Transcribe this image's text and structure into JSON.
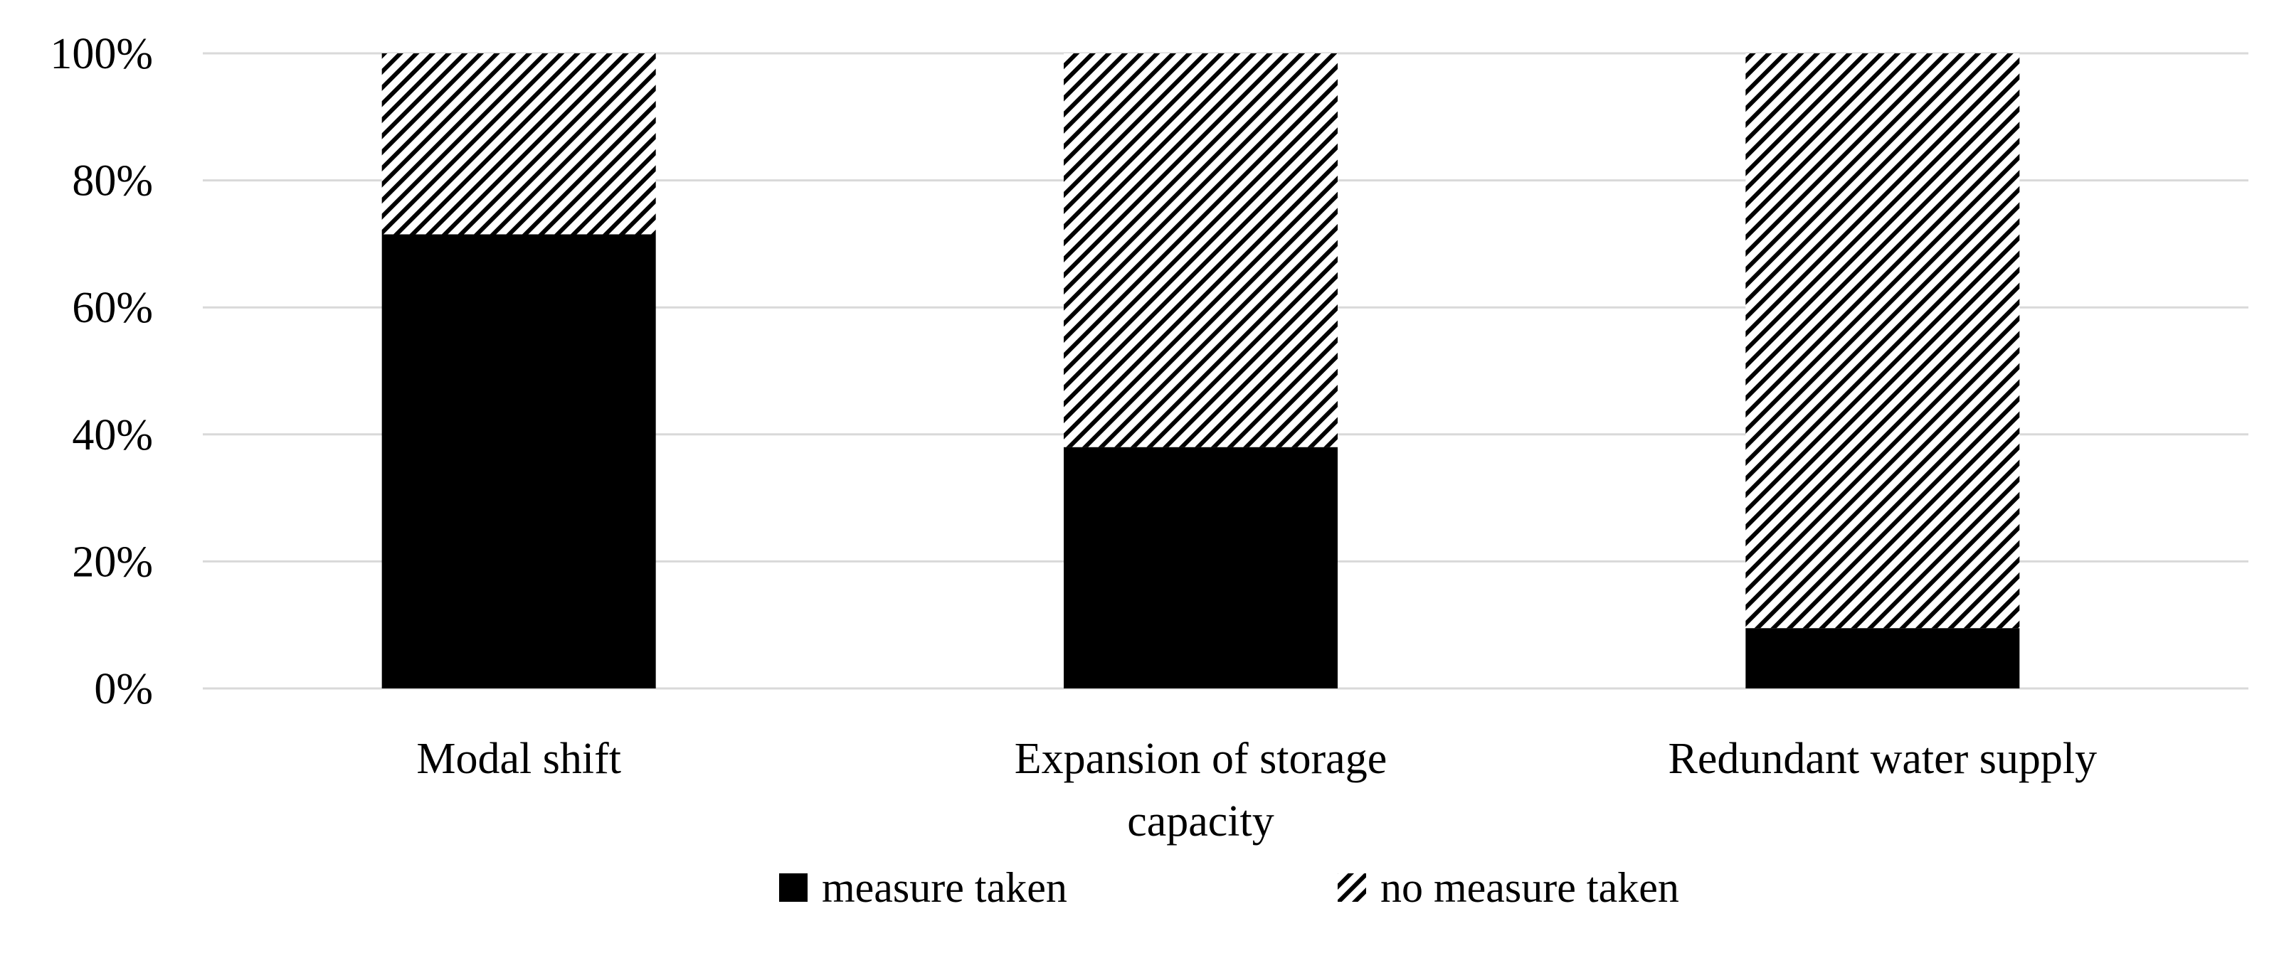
{
  "chart_data": {
    "type": "bar",
    "stacked": true,
    "normalized_percent": true,
    "title": "",
    "xlabel": "",
    "ylabel": "",
    "categories": [
      "Modal shift",
      "Expansion of storage capacity",
      "Redundant water supply"
    ],
    "category_label_lines": [
      [
        "Modal shift"
      ],
      [
        "Expansion of storage",
        "capacity"
      ],
      [
        "Redundant water supply"
      ]
    ],
    "series": [
      {
        "name": "measure taken",
        "values": [
          71.5,
          38,
          9.5
        ],
        "color": "#000000",
        "pattern": "solid"
      },
      {
        "name": "no measure taken",
        "values": [
          28.5,
          62,
          90.5
        ],
        "color": "#000000",
        "pattern": "diagonal-hatch"
      }
    ],
    "ylim": [
      0,
      100
    ],
    "yticks": [
      0,
      20,
      40,
      60,
      80,
      100
    ],
    "ytick_labels": [
      "0%",
      "20%",
      "40%",
      "60%",
      "80%",
      "100%"
    ],
    "grid": true,
    "legend_position": "bottom-center",
    "gridline_color": "#d9d9d9"
  }
}
